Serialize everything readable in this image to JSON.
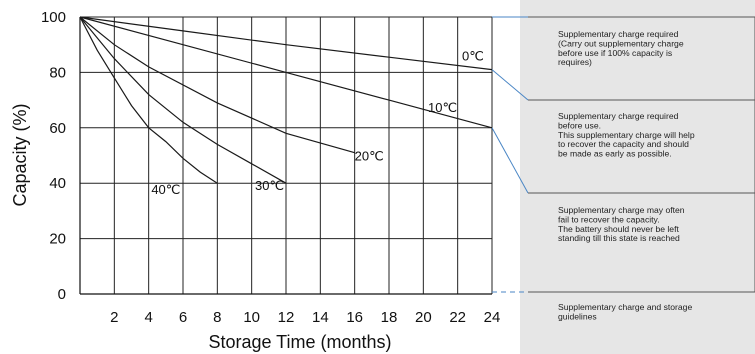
{
  "chart_data": {
    "type": "line",
    "title": "",
    "xlabel": "Storage Time (months)",
    "ylabel": "Capacity (%)",
    "xlim": [
      0,
      24
    ],
    "ylim": [
      0,
      100
    ],
    "x_ticks": [
      "2",
      "4",
      "6",
      "8",
      "10",
      "12",
      "14",
      "16",
      "18",
      "20",
      "22",
      "24"
    ],
    "y_ticks": [
      "0",
      "20",
      "40",
      "60",
      "80",
      "100"
    ],
    "grid": true,
    "series": [
      {
        "name": "0℃",
        "points": [
          [
            0,
            100
          ],
          [
            6,
            95
          ],
          [
            12,
            90
          ],
          [
            18,
            85.5
          ],
          [
            24,
            81
          ]
        ]
      },
      {
        "name": "10℃",
        "points": [
          [
            0,
            100
          ],
          [
            6,
            90
          ],
          [
            12,
            80
          ],
          [
            18,
            70
          ],
          [
            24,
            60
          ]
        ]
      },
      {
        "name": "20℃",
        "points": [
          [
            0,
            100
          ],
          [
            2,
            90
          ],
          [
            4,
            82
          ],
          [
            8,
            69
          ],
          [
            12,
            58
          ],
          [
            16,
            51
          ]
        ]
      },
      {
        "name": "30℃",
        "points": [
          [
            0,
            100
          ],
          [
            2,
            85
          ],
          [
            4,
            72
          ],
          [
            6,
            62
          ],
          [
            8,
            54
          ],
          [
            10,
            47
          ],
          [
            12,
            40
          ]
        ]
      },
      {
        "name": "40℃",
        "points": [
          [
            0,
            100
          ],
          [
            1,
            88
          ],
          [
            2,
            78
          ],
          [
            3,
            68
          ],
          [
            4,
            60
          ],
          [
            5,
            55
          ],
          [
            6,
            49
          ],
          [
            7,
            44
          ],
          [
            8,
            40
          ]
        ]
      }
    ],
    "annotations": [
      {
        "lines": [
          "Supplementary charge required",
          "(Carry out supplementary charge",
          "before use if 100% capacity is",
          "requires)"
        ]
      },
      {
        "lines": [
          "Supplementary charge required",
          "before use.",
          "This supplementary charge will help",
          "to recover the capacity and should",
          "be made  as early as possible."
        ]
      },
      {
        "lines": [
          "Supplementary charge may often",
          "fail to recover the capacity.",
          "The battery should never be left",
          "standing till this state is reached"
        ]
      },
      {
        "lines": [
          "Supplementary charge and storage",
          "guidelines"
        ]
      }
    ]
  }
}
